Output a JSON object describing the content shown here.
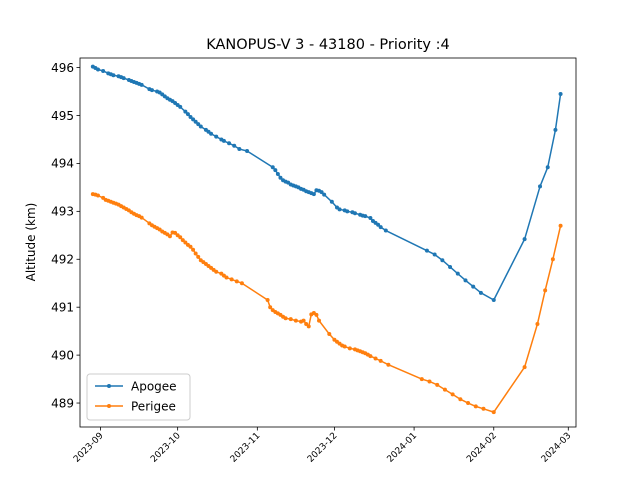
{
  "chart_data": {
    "type": "line",
    "title": "KANOPUS-V 3 - 43180 - Priority :4",
    "xlabel": "",
    "ylabel": "Altitude (km)",
    "x_ticks": [
      "2023-09",
      "2023-10",
      "2023-11",
      "2023-12",
      "2024-01",
      "2024-02",
      "2024-03"
    ],
    "y_ticks": [
      "489",
      "490",
      "491",
      "492",
      "493",
      "494",
      "495",
      "496"
    ],
    "xlim": [
      "2023-08-24",
      "2024-03-04"
    ],
    "ylim": [
      488.5,
      496.2
    ],
    "legend_position": "lower-left",
    "grid": false,
    "series": [
      {
        "name": "Apogee",
        "color": "#1f77b4",
        "points": [
          [
            "2023-08-29",
            496.02
          ],
          [
            "2023-08-30",
            495.99
          ],
          [
            "2023-08-31",
            495.96
          ],
          [
            "2023-09-02",
            495.93
          ],
          [
            "2023-09-04",
            495.88
          ],
          [
            "2023-09-05",
            495.86
          ],
          [
            "2023-09-06",
            495.84
          ],
          [
            "2023-09-08",
            495.82
          ],
          [
            "2023-09-09",
            495.8
          ],
          [
            "2023-09-10",
            495.78
          ],
          [
            "2023-09-12",
            495.74
          ],
          [
            "2023-09-13",
            495.72
          ],
          [
            "2023-09-14",
            495.7
          ],
          [
            "2023-09-15",
            495.68
          ],
          [
            "2023-09-16",
            495.66
          ],
          [
            "2023-09-17",
            495.64
          ],
          [
            "2023-09-20",
            495.55
          ],
          [
            "2023-09-21",
            495.53
          ],
          [
            "2023-09-23",
            495.5
          ],
          [
            "2023-09-24",
            495.48
          ],
          [
            "2023-09-25",
            495.44
          ],
          [
            "2023-09-26",
            495.4
          ],
          [
            "2023-09-27",
            495.36
          ],
          [
            "2023-09-28",
            495.33
          ],
          [
            "2023-09-29",
            495.3
          ],
          [
            "2023-09-30",
            495.26
          ],
          [
            "2023-10-01",
            495.22
          ],
          [
            "2023-10-02",
            495.18
          ],
          [
            "2023-10-04",
            495.08
          ],
          [
            "2023-10-05",
            495.03
          ],
          [
            "2023-10-06",
            494.97
          ],
          [
            "2023-10-07",
            494.92
          ],
          [
            "2023-10-08",
            494.87
          ],
          [
            "2023-10-09",
            494.82
          ],
          [
            "2023-10-10",
            494.77
          ],
          [
            "2023-10-12",
            494.7
          ],
          [
            "2023-10-13",
            494.66
          ],
          [
            "2023-10-14",
            494.62
          ],
          [
            "2023-10-16",
            494.56
          ],
          [
            "2023-10-18",
            494.5
          ],
          [
            "2023-10-19",
            494.47
          ],
          [
            "2023-10-21",
            494.42
          ],
          [
            "2023-10-23",
            494.37
          ],
          [
            "2023-10-25",
            494.3
          ],
          [
            "2023-10-28",
            494.26
          ],
          [
            "2023-11-07",
            493.92
          ],
          [
            "2023-11-08",
            493.86
          ],
          [
            "2023-11-09",
            493.78
          ],
          [
            "2023-11-10",
            493.7
          ],
          [
            "2023-11-11",
            493.65
          ],
          [
            "2023-11-12",
            493.62
          ],
          [
            "2023-11-13",
            493.6
          ],
          [
            "2023-11-14",
            493.56
          ],
          [
            "2023-11-15",
            493.54
          ],
          [
            "2023-11-16",
            493.52
          ],
          [
            "2023-11-17",
            493.5
          ],
          [
            "2023-11-18",
            493.47
          ],
          [
            "2023-11-19",
            493.45
          ],
          [
            "2023-11-20",
            493.42
          ],
          [
            "2023-11-21",
            493.4
          ],
          [
            "2023-11-22",
            493.38
          ],
          [
            "2023-11-23",
            493.36
          ],
          [
            "2023-11-24",
            493.44
          ],
          [
            "2023-11-25",
            493.43
          ],
          [
            "2023-11-26",
            493.4
          ],
          [
            "2023-11-27",
            493.35
          ],
          [
            "2023-11-30",
            493.2
          ],
          [
            "2023-12-02",
            493.08
          ],
          [
            "2023-12-03",
            493.04
          ],
          [
            "2023-12-05",
            493.02
          ],
          [
            "2023-12-06",
            493.0
          ],
          [
            "2023-12-08",
            492.98
          ],
          [
            "2023-12-09",
            492.96
          ],
          [
            "2023-12-11",
            492.93
          ],
          [
            "2023-12-12",
            492.91
          ],
          [
            "2023-12-13",
            492.9
          ],
          [
            "2023-12-15",
            492.86
          ],
          [
            "2023-12-16",
            492.8
          ],
          [
            "2023-12-17",
            492.76
          ],
          [
            "2023-12-18",
            492.72
          ],
          [
            "2023-12-19",
            492.67
          ],
          [
            "2023-12-21",
            492.6
          ],
          [
            "2024-01-06",
            492.18
          ],
          [
            "2024-01-09",
            492.1
          ],
          [
            "2024-01-12",
            491.98
          ],
          [
            "2024-01-15",
            491.84
          ],
          [
            "2024-01-18",
            491.7
          ],
          [
            "2024-01-21",
            491.56
          ],
          [
            "2024-01-24",
            491.43
          ],
          [
            "2024-01-27",
            491.3
          ],
          [
            "2024-02-01",
            491.15
          ],
          [
            "2024-02-13",
            492.42
          ],
          [
            "2024-02-19",
            493.52
          ],
          [
            "2024-02-22",
            493.92
          ],
          [
            "2024-02-25",
            494.7
          ],
          [
            "2024-02-27",
            495.45
          ]
        ]
      },
      {
        "name": "Perigee",
        "color": "#ff7f0e",
        "points": [
          [
            "2023-08-29",
            493.36
          ],
          [
            "2023-08-30",
            493.35
          ],
          [
            "2023-08-31",
            493.33
          ],
          [
            "2023-09-02",
            493.28
          ],
          [
            "2023-09-03",
            493.24
          ],
          [
            "2023-09-04",
            493.22
          ],
          [
            "2023-09-05",
            493.2
          ],
          [
            "2023-09-06",
            493.18
          ],
          [
            "2023-09-07",
            493.16
          ],
          [
            "2023-09-08",
            493.14
          ],
          [
            "2023-09-09",
            493.11
          ],
          [
            "2023-09-10",
            493.08
          ],
          [
            "2023-09-11",
            493.05
          ],
          [
            "2023-09-12",
            493.02
          ],
          [
            "2023-09-13",
            492.98
          ],
          [
            "2023-09-14",
            492.95
          ],
          [
            "2023-09-15",
            492.92
          ],
          [
            "2023-09-16",
            492.9
          ],
          [
            "2023-09-17",
            492.87
          ],
          [
            "2023-09-20",
            492.75
          ],
          [
            "2023-09-21",
            492.71
          ],
          [
            "2023-09-22",
            492.68
          ],
          [
            "2023-09-23",
            492.65
          ],
          [
            "2023-09-24",
            492.62
          ],
          [
            "2023-09-25",
            492.58
          ],
          [
            "2023-09-26",
            492.55
          ],
          [
            "2023-09-27",
            492.52
          ],
          [
            "2023-09-28",
            492.48
          ],
          [
            "2023-09-29",
            492.56
          ],
          [
            "2023-09-30",
            492.55
          ],
          [
            "2023-10-01",
            492.5
          ],
          [
            "2023-10-02",
            492.46
          ],
          [
            "2023-10-03",
            492.4
          ],
          [
            "2023-10-04",
            492.35
          ],
          [
            "2023-10-05",
            492.3
          ],
          [
            "2023-10-06",
            492.26
          ],
          [
            "2023-10-07",
            492.2
          ],
          [
            "2023-10-08",
            492.12
          ],
          [
            "2023-10-09",
            492.05
          ],
          [
            "2023-10-10",
            491.98
          ],
          [
            "2023-10-11",
            491.94
          ],
          [
            "2023-10-12",
            491.9
          ],
          [
            "2023-10-13",
            491.86
          ],
          [
            "2023-10-14",
            491.82
          ],
          [
            "2023-10-15",
            491.78
          ],
          [
            "2023-10-16",
            491.74
          ],
          [
            "2023-10-18",
            491.7
          ],
          [
            "2023-10-19",
            491.66
          ],
          [
            "2023-10-20",
            491.62
          ],
          [
            "2023-10-22",
            491.58
          ],
          [
            "2023-10-24",
            491.54
          ],
          [
            "2023-10-26",
            491.5
          ],
          [
            "2023-11-05",
            491.15
          ],
          [
            "2023-11-06",
            491.0
          ],
          [
            "2023-11-07",
            490.94
          ],
          [
            "2023-11-08",
            490.9
          ],
          [
            "2023-11-09",
            490.87
          ],
          [
            "2023-11-10",
            490.84
          ],
          [
            "2023-11-11",
            490.8
          ],
          [
            "2023-11-12",
            490.77
          ],
          [
            "2023-11-14",
            490.75
          ],
          [
            "2023-11-16",
            490.72
          ],
          [
            "2023-11-18",
            490.7
          ],
          [
            "2023-11-19",
            490.72
          ],
          [
            "2023-11-20",
            490.65
          ],
          [
            "2023-11-21",
            490.6
          ],
          [
            "2023-11-22",
            490.85
          ],
          [
            "2023-11-23",
            490.88
          ],
          [
            "2023-11-24",
            490.84
          ],
          [
            "2023-11-25",
            490.72
          ],
          [
            "2023-11-29",
            490.44
          ],
          [
            "2023-12-01",
            490.32
          ],
          [
            "2023-12-02",
            490.28
          ],
          [
            "2023-12-03",
            490.24
          ],
          [
            "2023-12-04",
            490.2
          ],
          [
            "2023-12-05",
            490.18
          ],
          [
            "2023-12-07",
            490.14
          ],
          [
            "2023-12-09",
            490.12
          ],
          [
            "2023-12-10",
            490.1
          ],
          [
            "2023-12-11",
            490.08
          ],
          [
            "2023-12-12",
            490.06
          ],
          [
            "2023-12-13",
            490.04
          ],
          [
            "2023-12-14",
            490.01
          ],
          [
            "2023-12-15",
            489.98
          ],
          [
            "2023-12-17",
            489.93
          ],
          [
            "2023-12-19",
            489.88
          ],
          [
            "2023-12-22",
            489.8
          ],
          [
            "2024-01-04",
            489.5
          ],
          [
            "2024-01-07",
            489.45
          ],
          [
            "2024-01-10",
            489.38
          ],
          [
            "2024-01-13",
            489.28
          ],
          [
            "2024-01-16",
            489.18
          ],
          [
            "2024-01-19",
            489.08
          ],
          [
            "2024-01-22",
            489.0
          ],
          [
            "2024-01-25",
            488.93
          ],
          [
            "2024-01-28",
            488.88
          ],
          [
            "2024-02-01",
            488.81
          ],
          [
            "2024-02-13",
            489.75
          ],
          [
            "2024-02-18",
            490.65
          ],
          [
            "2024-02-21",
            491.35
          ],
          [
            "2024-02-24",
            492.0
          ],
          [
            "2024-02-27",
            492.7
          ]
        ]
      }
    ]
  }
}
